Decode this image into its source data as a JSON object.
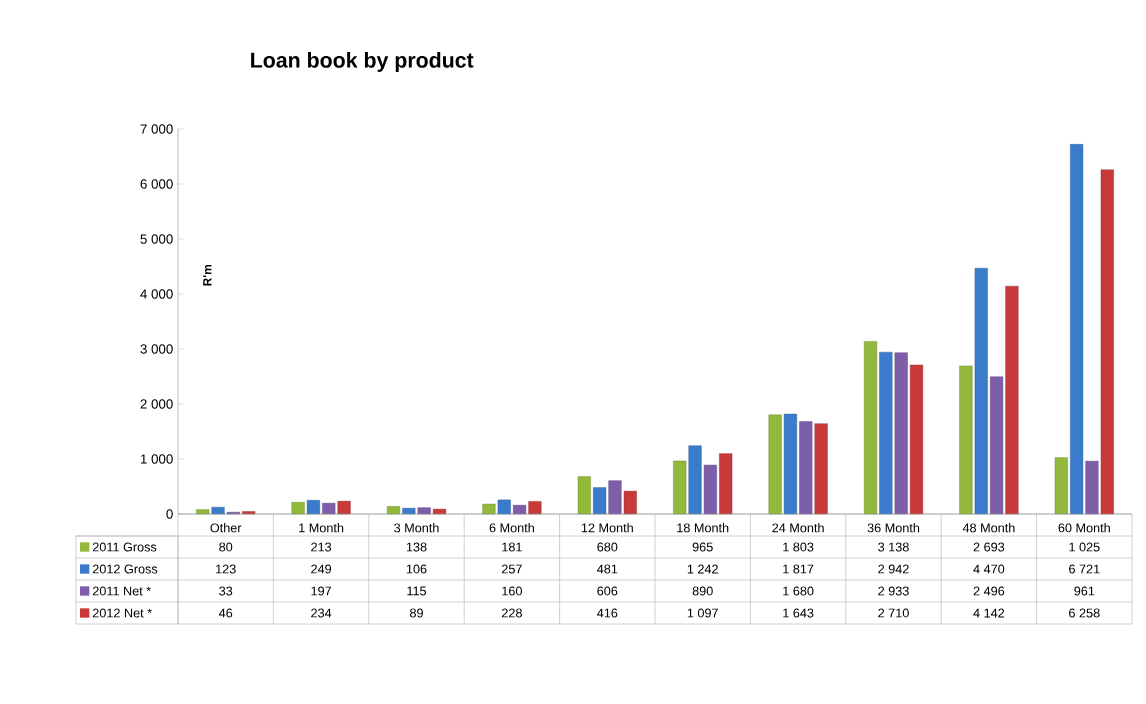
{
  "chart_data": {
    "type": "bar",
    "title": "Loan book by product",
    "ylabel": "R'm",
    "categories": [
      "Other",
      "1 Month",
      "3 Month",
      "6 Month",
      "12 Month",
      "18 Month",
      "24 Month",
      "36 Month",
      "48 Month",
      "60 Month"
    ],
    "series": [
      {
        "name": "2011 Gross",
        "color": "#92b83c",
        "values": [
          80,
          213,
          138,
          181,
          680,
          965,
          1803,
          3138,
          2693,
          1025
        ],
        "value_labels": [
          "80",
          "213",
          "138",
          "181",
          "680",
          "965",
          "1 803",
          "3 138",
          "2 693",
          "1 025"
        ]
      },
      {
        "name": "2012 Gross",
        "color": "#3a7ccb",
        "values": [
          123,
          249,
          106,
          257,
          481,
          1242,
          1817,
          2942,
          4470,
          6721
        ],
        "value_labels": [
          "123",
          "249",
          "106",
          "257",
          "481",
          "1 242",
          "1 817",
          "2 942",
          "4 470",
          "6 721"
        ]
      },
      {
        "name": "2011 Net *",
        "color": "#7e5ea9",
        "values": [
          33,
          197,
          115,
          160,
          606,
          890,
          1680,
          2933,
          2496,
          961
        ],
        "value_labels": [
          "33",
          "197",
          "115",
          "160",
          "606",
          "890",
          "1 680",
          "2 933",
          "2 496",
          "961"
        ]
      },
      {
        "name": "2012 Net *",
        "color": "#c8393a",
        "values": [
          46,
          234,
          89,
          228,
          416,
          1097,
          1643,
          2710,
          4142,
          6258
        ],
        "value_labels": [
          "46",
          "234",
          "89",
          "228",
          "416",
          "1 097",
          "1 643",
          "2 710",
          "4 142",
          "6 258"
        ]
      }
    ],
    "ylim": [
      0,
      7000
    ],
    "yticks": [
      {
        "value": 0,
        "label": "0"
      },
      {
        "value": 1000,
        "label": "1 000"
      },
      {
        "value": 2000,
        "label": "2 000"
      },
      {
        "value": 3000,
        "label": "3 000"
      },
      {
        "value": 4000,
        "label": "4 000"
      },
      {
        "value": 5000,
        "label": "5 000"
      },
      {
        "value": 6000,
        "label": "6 000"
      },
      {
        "value": 7000,
        "label": "7 000"
      }
    ],
    "grid": false,
    "legend": "bottom left"
  }
}
